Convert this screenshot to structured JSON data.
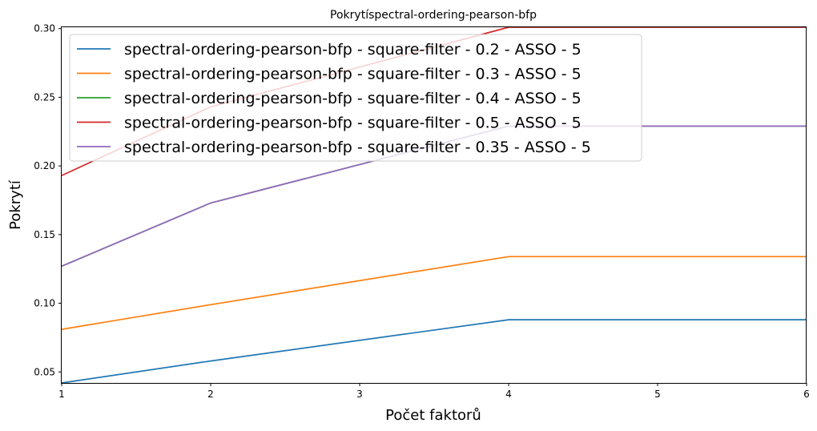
{
  "chart_data": {
    "type": "line",
    "title": "Pokrytíspectral-ordering-pearson-bfp",
    "xlabel": "Počet faktorů",
    "ylabel": "Pokrytí",
    "xlim": [
      1,
      6
    ],
    "ylim": [
      0.042,
      0.301
    ],
    "xticks": [
      "1",
      "2",
      "3",
      "4",
      "5",
      "6"
    ],
    "yticks": [
      "0.05",
      "0.10",
      "0.15",
      "0.20",
      "0.25",
      "0.30"
    ],
    "grid": false,
    "legend_position": "top-left",
    "x": [
      1,
      2,
      4,
      6
    ],
    "series": [
      {
        "name": "spectral-ordering-pearson-bfp - square-filter - 0.2 - ASSO - 5",
        "color": "#1f77b4",
        "values": [
          0.042,
          0.058,
          0.088,
          0.088
        ]
      },
      {
        "name": "spectral-ordering-pearson-bfp - square-filter - 0.3 - ASSO - 5",
        "color": "#ff7f0e",
        "values": [
          0.081,
          0.099,
          0.134,
          0.134
        ]
      },
      {
        "name": "spectral-ordering-pearson-bfp - square-filter - 0.4 - ASSO - 5",
        "color": "#2ca02c",
        "values": [
          0.127,
          0.173,
          0.229,
          0.229
        ]
      },
      {
        "name": "spectral-ordering-pearson-bfp - square-filter - 0.5 - ASSO - 5",
        "color": "#d62728",
        "values": [
          0.193,
          0.243,
          0.301,
          0.301
        ]
      },
      {
        "name": "spectral-ordering-pearson-bfp - square-filter - 0.35 - ASSO - 5",
        "color": "#9467bd",
        "values": [
          0.127,
          0.173,
          0.229,
          0.229
        ]
      }
    ]
  }
}
